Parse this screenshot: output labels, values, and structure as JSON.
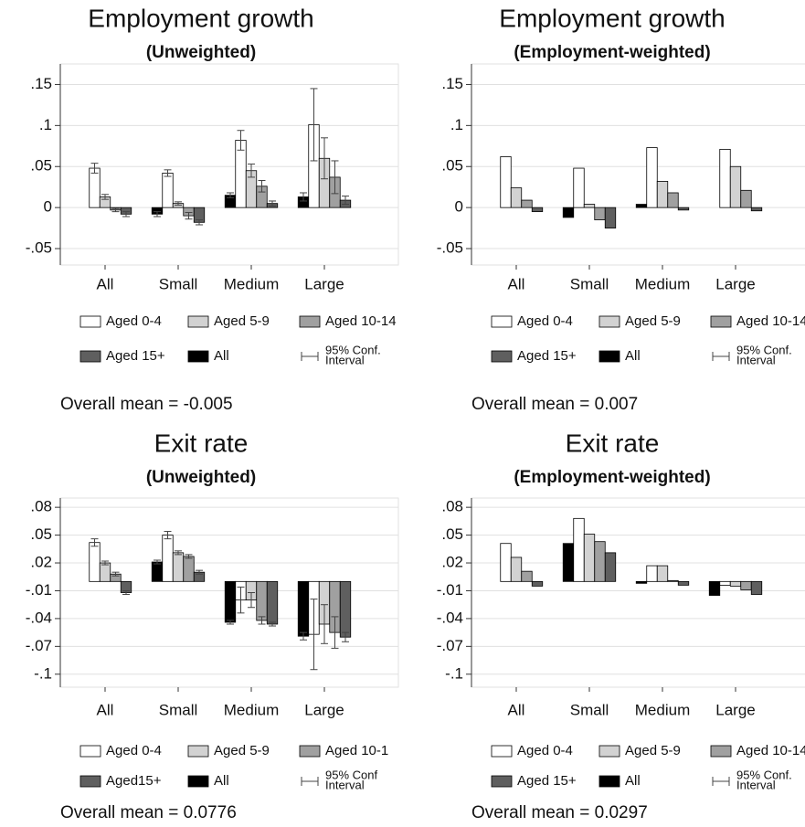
{
  "chart_data": [
    {
      "type": "bar",
      "title": "Employment growth",
      "subtitle": "(Unweighted)",
      "categories": [
        "All",
        "Small",
        "Medium",
        "Large"
      ],
      "series": [
        {
          "name": "Aged 0-4",
          "color": "#ffffff",
          "values": [
            0.048,
            0.042,
            0.082,
            0.101
          ],
          "errors": [
            0.006,
            0.004,
            0.012,
            0.044
          ]
        },
        {
          "name": "Aged 5-9",
          "color": "#d2d2d2",
          "values": [
            0.013,
            0.005,
            0.045,
            0.06
          ],
          "errors": [
            0.003,
            0.002,
            0.008,
            0.025
          ]
        },
        {
          "name": "Aged 10-14",
          "color": "#a0a0a0",
          "values": [
            -0.003,
            -0.01,
            0.026,
            0.037
          ],
          "errors": [
            0.002,
            0.004,
            0.007,
            0.02
          ]
        },
        {
          "name": "Aged 15+",
          "color": "#5f5f5f",
          "values": [
            -0.008,
            -0.018,
            0.005,
            0.009
          ],
          "errors": [
            0.003,
            0.003,
            0.003,
            0.005
          ]
        },
        {
          "name": "All",
          "color": "#000000",
          "values": [
            null,
            -0.008,
            0.015,
            0.013
          ],
          "errors": [
            null,
            0.003,
            0.003,
            0.005
          ]
        }
      ],
      "ci_label": [
        "95% Conf.",
        "Interval"
      ],
      "ylim": [
        -0.07,
        0.175
      ],
      "yticks": [
        {
          "value": 0.15,
          "label": ".15"
        },
        {
          "value": 0.1,
          "label": ".1"
        },
        {
          "value": 0.05,
          "label": ".05"
        },
        0,
        {
          "value": -0.05,
          "label": "-.05"
        }
      ],
      "grid": true,
      "note": "Overall mean = -0.005"
    },
    {
      "type": "bar",
      "title": "Employment growth",
      "subtitle": "(Employment-weighted)",
      "categories": [
        "All",
        "Small",
        "Medium",
        "Large"
      ],
      "series": [
        {
          "name": "Aged 0-4",
          "color": "#ffffff",
          "values": [
            0.062,
            0.048,
            0.073,
            0.071
          ]
        },
        {
          "name": "Aged 5-9",
          "color": "#d2d2d2",
          "values": [
            0.024,
            0.004,
            0.032,
            0.05
          ]
        },
        {
          "name": "Aged 10-14",
          "color": "#a0a0a0",
          "values": [
            0.009,
            -0.015,
            0.018,
            0.021
          ]
        },
        {
          "name": "Aged 15+",
          "color": "#5f5f5f",
          "values": [
            -0.005,
            -0.025,
            -0.003,
            -0.004
          ]
        },
        {
          "name": "All",
          "color": "#000000",
          "values": [
            null,
            -0.012,
            0.004,
            null
          ]
        }
      ],
      "ci_label": [
        "95% Conf.",
        "Interval"
      ],
      "ylim": [
        -0.07,
        0.175
      ],
      "yticks": [
        {
          "value": 0.15,
          "label": ".15"
        },
        {
          "value": 0.1,
          "label": ".1"
        },
        {
          "value": 0.05,
          "label": ".05"
        },
        0,
        {
          "value": -0.05,
          "label": "-.05"
        }
      ],
      "grid": true,
      "note": "Overall mean = 0.007"
    },
    {
      "type": "bar",
      "title": "Exit rate",
      "subtitle": "(Unweighted)",
      "categories": [
        "All",
        "Small",
        "Medium",
        "Large"
      ],
      "series": [
        {
          "name": "Aged 0-4",
          "color": "#ffffff",
          "values": [
            0.042,
            0.05,
            -0.02,
            -0.057
          ],
          "errors": [
            0.004,
            0.004,
            0.014,
            0.038
          ]
        },
        {
          "name": "Aged 5-9",
          "color": "#d2d2d2",
          "values": [
            0.02,
            0.031,
            -0.02,
            -0.046
          ],
          "errors": [
            0.002,
            0.002,
            0.008,
            0.021
          ]
        },
        {
          "name": "Aged 10-1",
          "color": "#a0a0a0",
          "values": [
            0.008,
            0.027,
            -0.042,
            -0.055
          ],
          "errors": [
            0.002,
            0.002,
            0.004,
            0.017
          ]
        },
        {
          "name": "Aged15+",
          "color": "#5f5f5f",
          "values": [
            -0.012,
            0.01,
            -0.046,
            -0.06
          ],
          "errors": [
            0.002,
            0.002,
            0.002,
            0.005
          ]
        },
        {
          "name": "All",
          "color": "#000000",
          "values": [
            null,
            0.021,
            -0.044,
            -0.059
          ],
          "errors": [
            null,
            0.002,
            0.002,
            0.004
          ]
        }
      ],
      "ci_label": [
        "95% Conf",
        "Interval"
      ],
      "ylim": [
        -0.114,
        0.09
      ],
      "yticks": [
        {
          "value": 0.08,
          "label": ".08"
        },
        {
          "value": 0.05,
          "label": ".05"
        },
        {
          "value": 0.02,
          "label": ".02"
        },
        {
          "value": -0.01,
          "label": "-.01"
        },
        {
          "value": -0.04,
          "label": "-.04"
        },
        {
          "value": -0.07,
          "label": "-.07"
        },
        {
          "value": -0.1,
          "label": "-.1"
        }
      ],
      "grid": true,
      "note": "Overall mean = 0.0776"
    },
    {
      "type": "bar",
      "title": "Exit rate",
      "subtitle": "(Employment-weighted)",
      "categories": [
        "All",
        "Small",
        "Medium",
        "Large"
      ],
      "series": [
        {
          "name": "Aged 0-4",
          "color": "#ffffff",
          "values": [
            0.041,
            0.068,
            0.017,
            -0.004
          ]
        },
        {
          "name": "Aged 5-9",
          "color": "#d2d2d2",
          "values": [
            0.026,
            0.051,
            0.017,
            -0.005
          ]
        },
        {
          "name": "Aged 10-14",
          "color": "#a0a0a0",
          "values": [
            0.011,
            0.043,
            0.001,
            -0.009
          ]
        },
        {
          "name": "Aged 15+",
          "color": "#5f5f5f",
          "values": [
            -0.005,
            0.031,
            -0.004,
            -0.014
          ]
        },
        {
          "name": "All",
          "color": "#000000",
          "values": [
            null,
            0.041,
            -0.002,
            -0.015
          ]
        }
      ],
      "ci_label": [
        "95% Conf.",
        "Interval"
      ],
      "ylim": [
        -0.114,
        0.09
      ],
      "yticks": [
        {
          "value": 0.08,
          "label": ".08"
        },
        {
          "value": 0.05,
          "label": ".05"
        },
        {
          "value": 0.02,
          "label": ".02"
        },
        {
          "value": -0.01,
          "label": "-.01"
        },
        {
          "value": -0.04,
          "label": "-.04"
        },
        {
          "value": -0.07,
          "label": "-.07"
        },
        {
          "value": -0.1,
          "label": "-.1"
        }
      ],
      "grid": true,
      "note": "Overall mean = 0.0297"
    }
  ]
}
